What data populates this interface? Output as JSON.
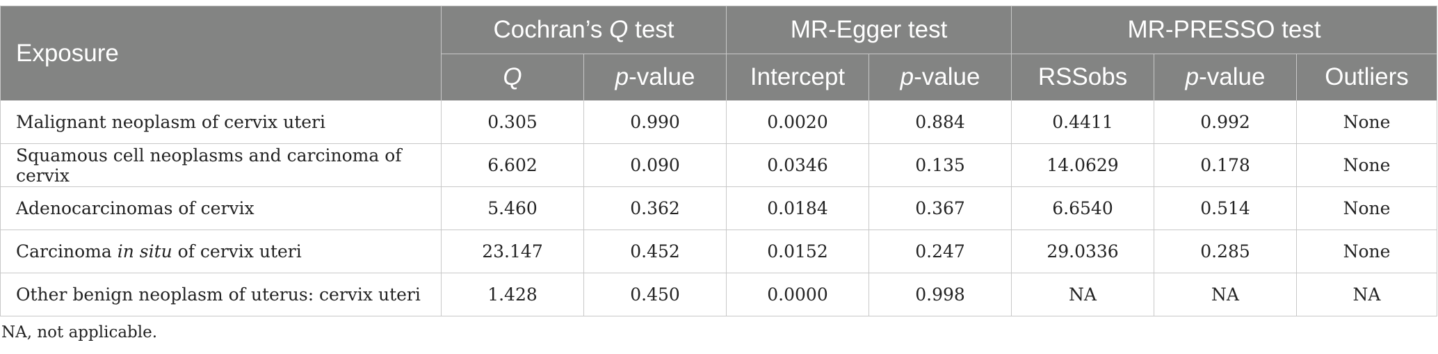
{
  "header": {
    "exposure": "Exposure",
    "cochran_pre": "Cochran’s ",
    "cochran_q": "Q",
    "cochran_post": " test",
    "egger": "MR-Egger test",
    "presso": "MR-PRESSO test",
    "sub": {
      "q": "Q",
      "p_italic": "p",
      "p_rest": "-value",
      "intercept": "Intercept",
      "rssobs": "RSSobs",
      "outliers": "Outliers"
    }
  },
  "rows": [
    {
      "exposure_pre": "Malignant neoplasm of cervix uteri",
      "exposure_it": "",
      "exposure_post": "",
      "q": "0.305",
      "q_p": "0.990",
      "intercept": "0.0020",
      "egger_p": "0.884",
      "rssobs": "0.4411",
      "presso_p": "0.992",
      "outliers": "None"
    },
    {
      "exposure_pre": "Squamous cell neoplasms and carcinoma of cervix",
      "exposure_it": "",
      "exposure_post": "",
      "q": "6.602",
      "q_p": "0.090",
      "intercept": "0.0346",
      "egger_p": "0.135",
      "rssobs": "14.0629",
      "presso_p": "0.178",
      "outliers": "None"
    },
    {
      "exposure_pre": "Adenocarcinomas of cervix",
      "exposure_it": "",
      "exposure_post": "",
      "q": "5.460",
      "q_p": "0.362",
      "intercept": "0.0184",
      "egger_p": "0.367",
      "rssobs": "6.6540",
      "presso_p": "0.514",
      "outliers": "None"
    },
    {
      "exposure_pre": "Carcinoma ",
      "exposure_it": "in situ",
      "exposure_post": " of cervix uteri",
      "q": "23.147",
      "q_p": "0.452",
      "intercept": "0.0152",
      "egger_p": "0.247",
      "rssobs": "29.0336",
      "presso_p": "0.285",
      "outliers": "None"
    },
    {
      "exposure_pre": "Other benign neoplasm of uterus: cervix uteri",
      "exposure_it": "",
      "exposure_post": "",
      "q": "1.428",
      "q_p": "0.450",
      "intercept": "0.0000",
      "egger_p": "0.998",
      "rssobs": "NA",
      "presso_p": "NA",
      "outliers": "NA"
    }
  ],
  "footnote": "NA, not applicable."
}
